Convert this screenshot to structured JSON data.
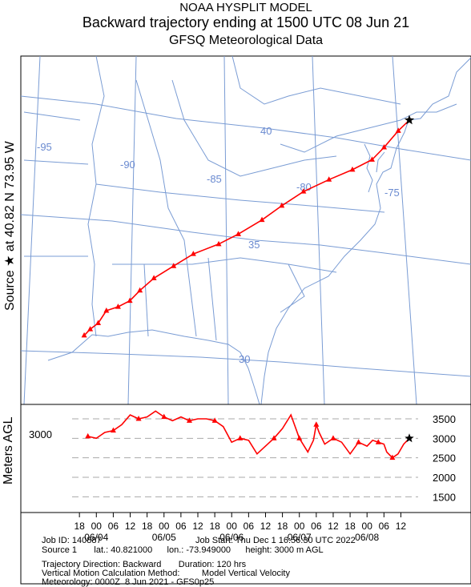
{
  "header": {
    "model": "NOAA HYSPLIT MODEL",
    "title": "Backward trajectory ending at 1500 UTC 08 Jun 21",
    "subtitle": "GFSQ Meteorological Data"
  },
  "side_labels": {
    "source": "Source ★ at   40.82 N   73.95 W",
    "vertical_axis": "Meters AGL"
  },
  "map": {
    "lon_labels": [
      "-95",
      "-90",
      "-85",
      "-80",
      "-75"
    ],
    "lat_labels": [
      "40",
      "35",
      "30"
    ],
    "source_marker": "★"
  },
  "chart_data": {
    "type": "line",
    "title": "Backward trajectory ending at 1500 UTC 08 Jun 21",
    "series": [
      {
        "name": "Source 1",
        "color": "#ff0000",
        "hours_back": [
          0,
          6,
          12,
          18,
          24,
          30,
          36,
          42,
          48,
          54,
          60,
          66,
          72,
          78,
          84,
          90,
          96,
          102,
          108,
          114,
          120
        ],
        "lat": [
          40.82,
          40.3,
          39.5,
          38.9,
          38.4,
          37.9,
          37.3,
          36.6,
          35.9,
          35.2,
          34.7,
          34.2,
          33.6,
          33.0,
          32.4,
          31.9,
          31.6,
          31.4,
          30.8,
          30.5,
          30.2
        ],
        "lon": [
          -73.95,
          -74.5,
          -75.2,
          -75.8,
          -76.8,
          -78.0,
          -79.3,
          -80.4,
          -81.4,
          -82.6,
          -83.6,
          -84.9,
          -85.9,
          -86.9,
          -87.6,
          -88.1,
          -88.7,
          -89.3,
          -89.7,
          -90.1,
          -90.4
        ],
        "height_m_agl": [
          3000,
          2850,
          2600,
          2500,
          2650,
          2850,
          2900,
          2950,
          2800,
          2900,
          2600,
          2900,
          3000,
          2850,
          3150,
          3350,
          2950,
          2650,
          3000,
          3600,
          3250,
          3000,
          2600,
          2950,
          3000,
          2900,
          3300,
          3450,
          3500,
          3500,
          3450,
          3550,
          3450,
          3550,
          3700,
          3550,
          3500,
          3600,
          3350,
          3200,
          3150,
          3000,
          3050
        ],
        "height_hours_back": [
          0,
          2,
          4,
          6,
          8,
          9,
          11,
          13,
          15,
          18,
          21,
          24,
          27,
          30,
          32,
          33,
          34,
          36,
          39,
          42,
          45,
          48,
          54,
          57,
          60,
          63,
          66,
          69,
          72,
          75,
          78,
          81,
          84,
          87,
          90,
          93,
          96,
          99,
          102,
          105,
          108,
          111,
          114
        ]
      }
    ],
    "ylabel": "Meters AGL",
    "yticks": [
      3500,
      3000,
      2500,
      2000,
      1500
    ],
    "ylim": [
      1500,
      3800
    ],
    "xtick_labels": [
      "12",
      "06",
      "00",
      "18",
      "12",
      "06",
      "00",
      "18",
      "12",
      "06",
      "00",
      "18",
      "12",
      "06",
      "00",
      "18",
      "12",
      "06",
      "00",
      "18"
    ],
    "date_labels": [
      "06/08",
      "06/07",
      "06/06",
      "06/05",
      "06/04"
    ],
    "start_label": "3000"
  },
  "info": {
    "job_id": "Job ID: 140887",
    "job_start": "Job Start: Thu Dec  1 16:56:30 UTC 2022",
    "source": "Source 1       lat.: 40.821000      lon.: -73.949000      height: 3000 m AGL",
    "direction": "Trajectory Direction: Backward       Duration: 120 hrs",
    "vertical": "Vertical Motion Calculation Method:         Model Vertical Velocity",
    "meteorology": "Meteorology: 0000Z  8 Jun 2021 - GFS0p25"
  }
}
